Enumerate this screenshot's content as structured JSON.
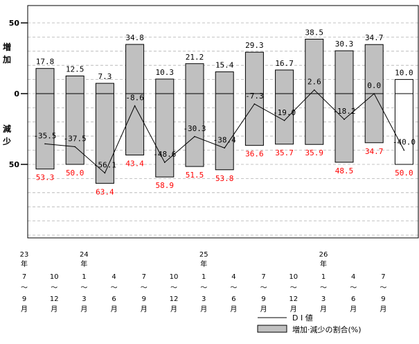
{
  "chart_data": {
    "type": "bar",
    "yaxis": {
      "ticks": [
        {
          "value": 50,
          "label": "50"
        },
        {
          "value": 0,
          "label": "0"
        },
        {
          "value": -50,
          "label": "50"
        }
      ],
      "upper_label": [
        "増",
        "加"
      ],
      "lower_label": [
        "減",
        "少"
      ],
      "ylim": [
        -100,
        60
      ]
    },
    "periods": [
      {
        "year": "23",
        "from": "7",
        "to": "9"
      },
      {
        "year": "",
        "from": "10",
        "to": "12"
      },
      {
        "year": "24",
        "from": "1",
        "to": "3"
      },
      {
        "year": "",
        "from": "4",
        "to": "6"
      },
      {
        "year": "",
        "from": "7",
        "to": "9"
      },
      {
        "year": "",
        "from": "10",
        "to": "12"
      },
      {
        "year": "25",
        "from": "1",
        "to": "3"
      },
      {
        "year": "",
        "from": "4",
        "to": "6"
      },
      {
        "year": "",
        "from": "7",
        "to": "9"
      },
      {
        "year": "",
        "from": "10",
        "to": "12"
      },
      {
        "year": "26",
        "from": "1",
        "to": "3"
      },
      {
        "year": "",
        "from": "4",
        "to": "6"
      },
      {
        "year": "",
        "from": "7",
        "to": "9"
      }
    ],
    "x_label_units": {
      "year": "年",
      "month": "月",
      "tilde": "〜"
    },
    "series": [
      {
        "name": "増加・減少の割合(%)",
        "role": "increase",
        "values": [
          17.8,
          12.5,
          7.3,
          34.8,
          10.3,
          21.2,
          15.4,
          29.3,
          16.7,
          38.5,
          30.3,
          34.7,
          10.0
        ]
      },
      {
        "role": "decrease",
        "values": [
          53.3,
          50.0,
          63.4,
          43.4,
          58.9,
          51.5,
          53.8,
          36.6,
          35.7,
          35.9,
          48.5,
          34.7,
          50.0
        ]
      },
      {
        "name": "D I 値",
        "role": "di",
        "values": [
          -35.5,
          -37.5,
          -56.1,
          -8.6,
          -48.6,
          -30.3,
          -38.4,
          -7.3,
          -19.0,
          2.6,
          -18.2,
          0.0,
          -40.0
        ]
      }
    ],
    "increase_labels": [
      "17.8",
      "12.5",
      "7.3",
      "34.8",
      "10.3",
      "21.2",
      "15.4",
      "29.3",
      "16.7",
      "38.5",
      "30.3",
      "34.7",
      "10.0"
    ],
    "decrease_labels": [
      "53.3",
      "50.0",
      "63.4",
      "43.4",
      "58.9",
      "51.5",
      "53.8",
      "36.6",
      "35.7",
      "35.9",
      "48.5",
      "34.7",
      "50.0"
    ],
    "di_labels": [
      "-35.5",
      "-37.5",
      "-56.1",
      "-8.6",
      "-48.6",
      "-30.3",
      "-38.4",
      "-7.3",
      "-19.0",
      "2.6",
      "-18.2",
      "0.0",
      "-40.0"
    ],
    "forecast_index": 12,
    "legend": [
      {
        "label": "D I 値",
        "kind": "line"
      },
      {
        "label": "増加·減少の割合(%)",
        "kind": "box"
      }
    ],
    "colors": {
      "bar": "#c0c0c0",
      "forecast_bar": "#ffffff",
      "decrease_text": "#ff0000",
      "text": "#000000",
      "grid": "#b0b0b0",
      "line": "#000000"
    },
    "grid": true
  }
}
